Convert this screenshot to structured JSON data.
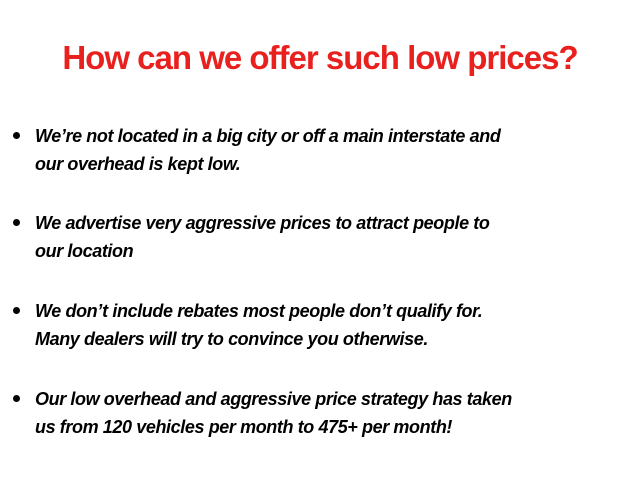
{
  "title": "How can we offer such low prices?",
  "colors": {
    "title": "#e8211f",
    "text": "#000000"
  },
  "bullets": [
    {
      "lines": [
        "We’re not located in a big city or off a main interstate and",
        "our overhead is kept low."
      ]
    },
    {
      "lines": [
        "We advertise very aggressive prices to attract people to",
        "our location"
      ]
    },
    {
      "lines": [
        "We don’t include rebates most people don’t qualify for.",
        "Many dealers will try to convince you otherwise."
      ]
    },
    {
      "lines": [
        "Our low overhead and aggressive price strategy has taken",
        "us from 120 vehicles per month to 475+ per month!"
      ]
    }
  ]
}
